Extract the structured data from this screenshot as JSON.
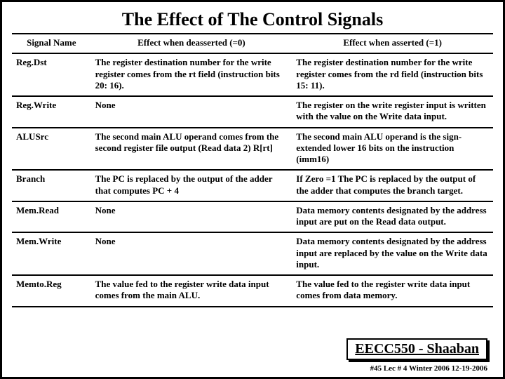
{
  "title": "The Effect of The Control Signals",
  "headers": {
    "name": "Signal Name",
    "deasserted": "Effect when deasserted (=0)",
    "asserted": "Effect when asserted (=1)"
  },
  "rows": [
    {
      "name": "Reg.Dst",
      "d": "The register destination number for the write register comes from the rt field (instruction bits 20: 16).",
      "a": "The register destination number for the write register comes from the rd field (instruction bits 15: 11)."
    },
    {
      "name": "Reg.Write",
      "d": "None",
      "a": "The register on the write register input is written with the value on the Write data input."
    },
    {
      "name": "ALUSrc",
      "d": "The second main ALU operand comes from the second register file output (Read data 2) R[rt]",
      "a": "The second main ALU operand is the sign-extended lower 16 bits on the instruction (imm16)"
    },
    {
      "name": "Branch",
      "d": "The PC is replaced by the output of the adder that computes PC + 4",
      "a": "If Zero =1 The PC is replaced by the output of the adder that computes the branch target."
    },
    {
      "name": "Mem.Read",
      "d": "None",
      "a": "Data memory contents designated by the address input are put on the Read data output."
    },
    {
      "name": "Mem.Write",
      "d": "None",
      "a": "Data memory contents designated by the address input are replaced by the value on the Write data input."
    },
    {
      "name": "Memto.Reg",
      "d": "The value fed to the register write data input comes from the main ALU.",
      "a": "The value fed to the register write data input comes from data memory."
    }
  ],
  "stamp": "EECC550 - Shaaban",
  "footer": "#45  Lec # 4   Winter 2006  12-19-2006"
}
